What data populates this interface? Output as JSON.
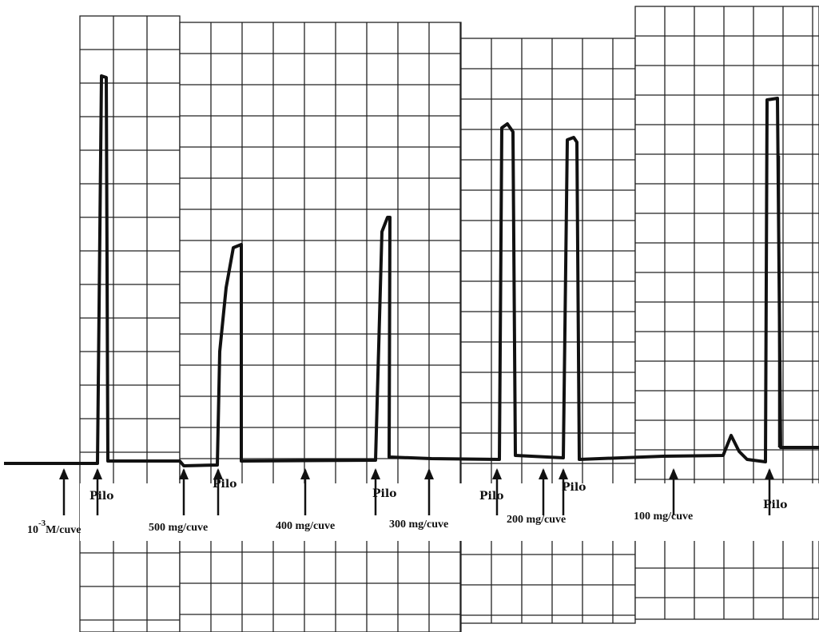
{
  "annotations": {
    "concentrations": [
      {
        "base": "10",
        "exponent": "-3",
        "unit": "M/cuve"
      },
      {
        "text": "500 mg/cuve"
      },
      {
        "text": "400 mg/cuve"
      },
      {
        "text": "300 mg/cuve"
      },
      {
        "text": "200 mg/cuve"
      },
      {
        "text": "100 mg/cuve"
      }
    ],
    "injections": [
      "Pilo",
      "Pilo",
      "Pilo",
      "Pilo",
      "Pilo",
      "Pilo"
    ]
  }
}
